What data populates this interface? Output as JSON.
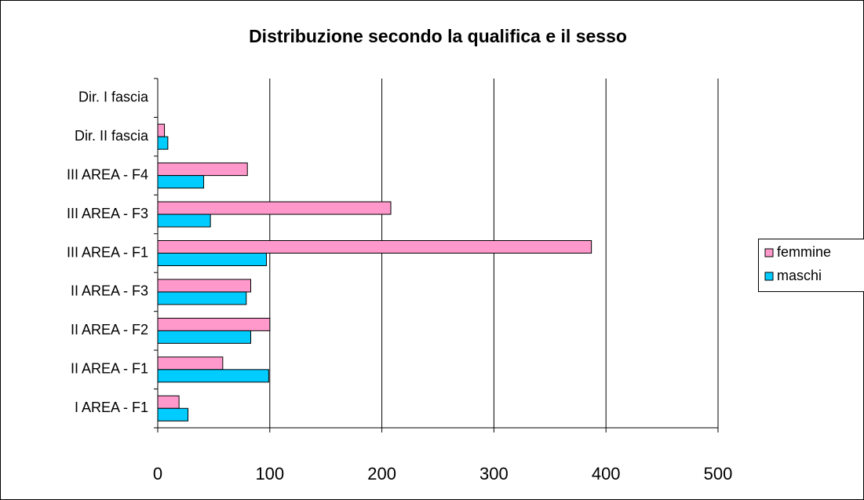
{
  "chart_data": {
    "type": "hbar",
    "title": "Distribuzione secondo la qualifica e il sesso",
    "categories": [
      "I AREA - F1",
      "II AREA - F1",
      "II AREA - F2",
      "II AREA - F3",
      "III AREA - F1",
      "III AREA - F3",
      "III AREA - F4",
      "Dir. II fascia",
      "Dir. I fascia"
    ],
    "series": [
      {
        "name": "femmine",
        "color": "#ff99cc",
        "values": [
          19,
          58,
          100,
          83,
          387,
          208,
          80,
          6,
          0
        ]
      },
      {
        "name": "maschi",
        "color": "#00ccff",
        "values": [
          27,
          99,
          83,
          79,
          97,
          47,
          41,
          9,
          0
        ]
      }
    ],
    "xlim": [
      0,
      500
    ],
    "xticks": [
      0,
      100,
      200,
      300,
      400,
      500
    ],
    "grid": true,
    "legend": "right"
  }
}
